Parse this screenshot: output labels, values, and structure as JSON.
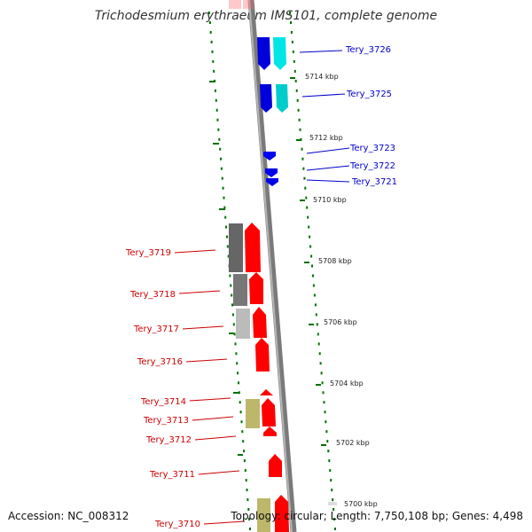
{
  "title": "Trichodesmium erythraeum IMS101, complete genome",
  "footer": {
    "accession": "Accession: NC_008312",
    "topology": "Topology: circular; Length: 7,750,108 bp; Genes: 4,498"
  },
  "ticks": {
    "t5714": "5714 kbp",
    "t5712": "5712 kbp",
    "t5710": "5710 kbp",
    "t5708": "5708 kbp",
    "t5706": "5706 kbp",
    "t5704": "5704 kbp",
    "t5702": "5702 kbp",
    "t5700": "5700 kbp"
  },
  "genes_right": {
    "g3726": "Tery_3726",
    "g3725": "Tery_3725",
    "g3723": "Tery_3723",
    "g3722": "Tery_3722",
    "g3721": "Tery_3721"
  },
  "genes_left": {
    "g3719": "Tery_3719",
    "g3718": "Tery_3718",
    "g3717": "Tery_3717",
    "g3716": "Tery_3716",
    "g3714": "Tery_3714",
    "g3713": "Tery_3713",
    "g3712": "Tery_3712",
    "g3711": "Tery_3711",
    "g3710": "Tery_3710"
  },
  "colors": {
    "backbone": "#8c8c8c",
    "forward_gene": "#ff0000",
    "reverse_gene": "#0000ff",
    "cyan_gene": "#00e5e5",
    "dark_gray_gene": "#666666",
    "light_gray_gene": "#bbbbbb",
    "khaki_gene": "#bdb76b",
    "marker": "#007000"
  }
}
